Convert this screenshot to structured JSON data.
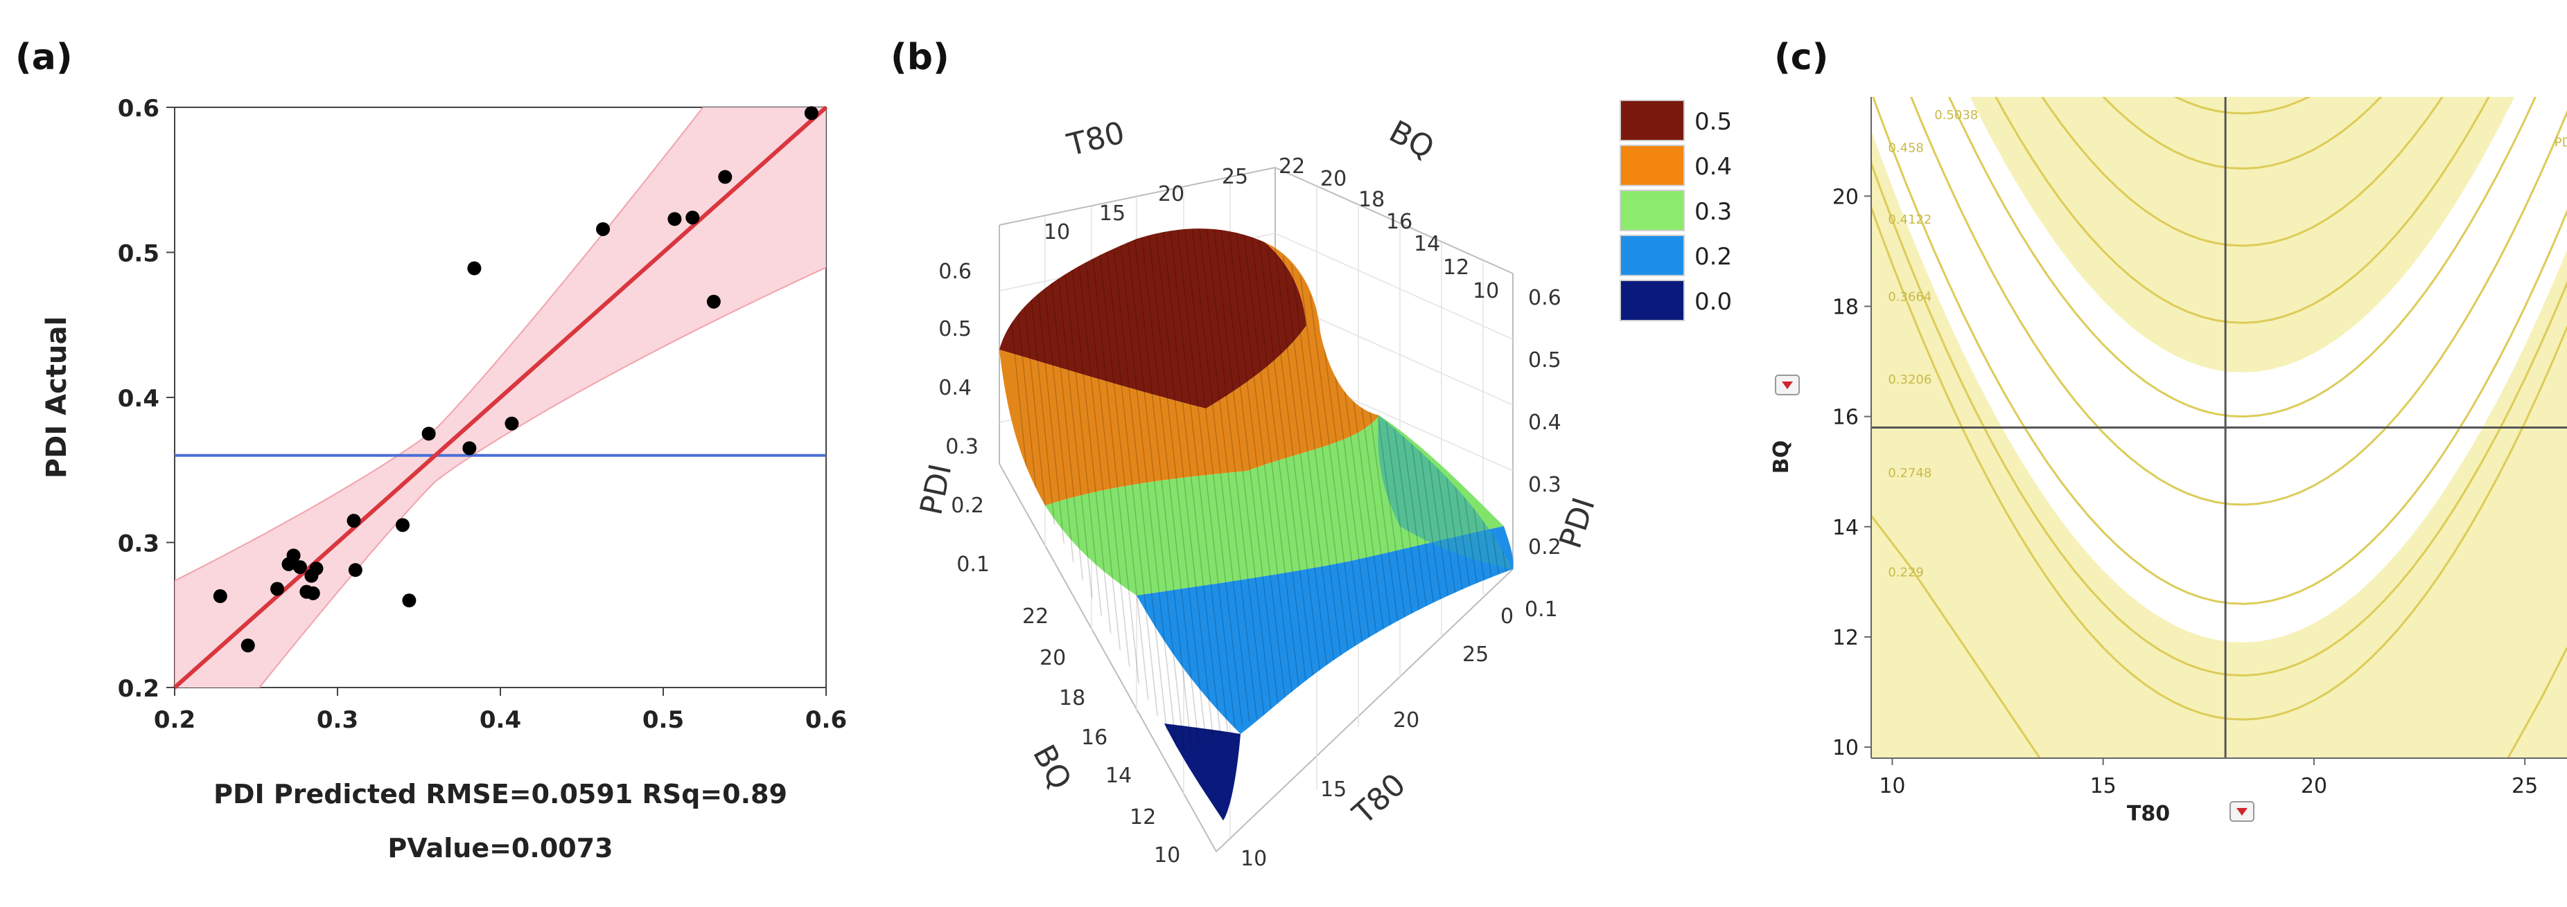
{
  "panels": {
    "a": "(a)",
    "b": "(b)",
    "c": "(c)"
  },
  "chart_data": [
    {
      "type": "scatter",
      "panel": "(a)",
      "xlabel": "PDI Predicted RMSE=0.0591 RSq=0.89",
      "xlabel2": "PValue=0.0073",
      "ylabel": "PDI Actual",
      "xlim": [
        0.2,
        0.6
      ],
      "ylim": [
        0.2,
        0.6
      ],
      "xticks": [
        "0.2",
        "0.3",
        "0.4",
        "0.5",
        "0.6"
      ],
      "yticks": [
        "0.2",
        "0.3",
        "0.4",
        "0.5",
        "0.6"
      ],
      "mean_line": 0.36,
      "fit_line": [
        [
          0.2,
          0.2
        ],
        [
          0.6,
          0.6
        ]
      ],
      "points": [
        [
          0.228,
          0.263
        ],
        [
          0.245,
          0.229
        ],
        [
          0.263,
          0.268
        ],
        [
          0.27,
          0.285
        ],
        [
          0.273,
          0.291
        ],
        [
          0.277,
          0.283
        ],
        [
          0.281,
          0.266
        ],
        [
          0.284,
          0.277
        ],
        [
          0.285,
          0.265
        ],
        [
          0.287,
          0.282
        ],
        [
          0.31,
          0.315
        ],
        [
          0.311,
          0.281
        ],
        [
          0.34,
          0.312
        ],
        [
          0.344,
          0.26
        ],
        [
          0.356,
          0.375
        ],
        [
          0.381,
          0.365
        ],
        [
          0.384,
          0.489
        ],
        [
          0.407,
          0.382
        ],
        [
          0.463,
          0.516
        ],
        [
          0.507,
          0.523
        ],
        [
          0.518,
          0.524
        ],
        [
          0.531,
          0.466
        ],
        [
          0.538,
          0.552
        ],
        [
          0.591,
          0.596
        ]
      ],
      "colors": {
        "fit": "#d9363e",
        "band": "#f9d7dc",
        "mean": "#4a6fd6",
        "point": "#000000"
      }
    },
    {
      "type": "surface3d",
      "panel": "(b)",
      "axes": {
        "x": "T80",
        "y": "BQ",
        "z": "PDI"
      },
      "x_ticks": [
        "10",
        "15",
        "20",
        "25"
      ],
      "y_ticks": [
        "10",
        "12",
        "14",
        "16",
        "18",
        "20",
        "22"
      ],
      "z_ticks": [
        "0.1",
        "0.2",
        "0.3",
        "0.4",
        "0.5",
        "0.6"
      ],
      "colorbar": [
        {
          "label": "0.5",
          "color": "#7a1a0e"
        },
        {
          "label": "0.4",
          "color": "#f2860f"
        },
        {
          "label": "0.3",
          "color": "#8cea6c"
        },
        {
          "label": "0.2",
          "color": "#1e8fe8"
        },
        {
          "label": "0.0",
          "color": "#0a1a7c"
        }
      ]
    },
    {
      "type": "contour",
      "panel": "(c)",
      "xlabel": "T80",
      "ylabel": "BQ",
      "xlim": [
        9.5,
        26
      ],
      "ylim": [
        9.8,
        21.8
      ],
      "xticks": [
        "10",
        "15",
        "20",
        "25"
      ],
      "yticks": [
        "10",
        "12",
        "14",
        "16",
        "18",
        "20"
      ],
      "crosshair": {
        "x": 17.9,
        "y": 15.8
      },
      "contour_levels": [
        "0.5038",
        "0.458",
        "0.4122",
        "0.3664",
        "0.3206",
        "0.2748",
        "0.229"
      ],
      "right_edge_label": "PDI",
      "colors": {
        "fill": "#f6f1b8",
        "line": "#dccc58",
        "cross": "#555555"
      }
    }
  ]
}
